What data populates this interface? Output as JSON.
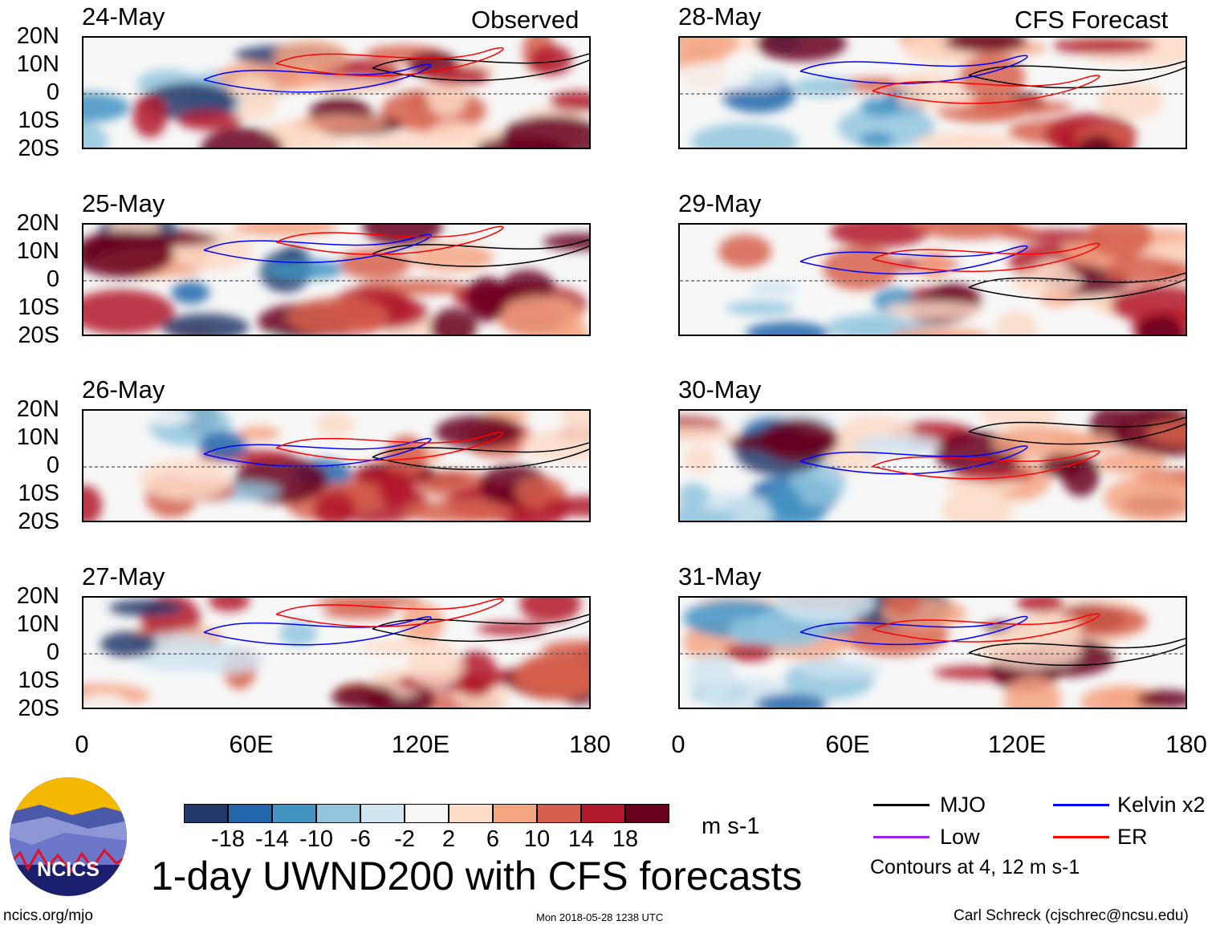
{
  "figure": {
    "title": "1-day UWND200 with CFS forecasts",
    "left_header": "Observed",
    "right_header": "CFS Forecast",
    "lat_labels": [
      "20N",
      "10N",
      "0",
      "10S",
      "20S"
    ],
    "lon_labels": [
      "0",
      "60E",
      "120E",
      "180"
    ],
    "panels_left": [
      {
        "date": "24-May"
      },
      {
        "date": "25-May"
      },
      {
        "date": "26-May"
      },
      {
        "date": "27-May"
      }
    ],
    "panels_right": [
      {
        "date": "28-May"
      },
      {
        "date": "29-May"
      },
      {
        "date": "30-May"
      },
      {
        "date": "31-May"
      }
    ]
  },
  "colorbar": {
    "units": "m s-1",
    "labels": [
      "-18",
      "-14",
      "-10",
      "-6",
      "-2",
      "2",
      "6",
      "10",
      "14",
      "18"
    ],
    "colors": [
      "#23386a",
      "#2166ac",
      "#4393c3",
      "#92c5de",
      "#d1e5f0",
      "#f7f7f7",
      "#fddbc7",
      "#f4a582",
      "#d6604d",
      "#b2182b",
      "#67001f"
    ]
  },
  "legend": {
    "items": [
      {
        "label": "MJO",
        "color": "#000000"
      },
      {
        "label": "Kelvin x2",
        "color": "#0000ff"
      },
      {
        "label": "Low",
        "color": "#a020f0"
      },
      {
        "label": "ER",
        "color": "#ff0000"
      }
    ],
    "note": "Contours at 4, 12 m s-1"
  },
  "footer": {
    "logo_text": "NCICS",
    "site": "ncics.org/mjo",
    "timestamp": "Mon 2018-05-28 1238 UTC",
    "credit": "Carl Schreck (cjschrec@ncsu.edu)"
  }
}
